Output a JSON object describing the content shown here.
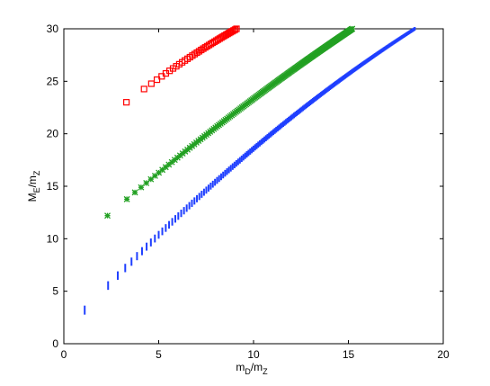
{
  "chart_data": {
    "type": "scatter",
    "title": "",
    "xlabel": {
      "main": "m",
      "sub": "D",
      "tail": "/m",
      "sub2": "Z"
    },
    "ylabel": {
      "main": "M",
      "sub": "E",
      "tail": "/m",
      "sub2": "Z"
    },
    "xlim": [
      0,
      20
    ],
    "ylim": [
      0,
      30
    ],
    "xticks": [
      "0",
      "5",
      "10",
      "15",
      "20"
    ],
    "yticks": [
      "0",
      "5",
      "10",
      "15",
      "20",
      "25",
      "30"
    ],
    "grid": false,
    "legend": "none",
    "series": [
      {
        "color": "#ff0000",
        "marker": "square",
        "x_range": [
          3.3,
          9.1
        ],
        "y_range": [
          23,
          30
        ],
        "points": 40,
        "curve": 0.15
      },
      {
        "color": "#22a022",
        "marker": "asterisk",
        "x_range": [
          2.3,
          15.2
        ],
        "y_range": [
          12.2,
          30
        ],
        "points": 160,
        "curve": 0.12
      },
      {
        "color": "#1f3fff",
        "marker": "vline",
        "x_range": [
          1.1,
          18.5
        ],
        "y_range": [
          3.2,
          30
        ],
        "points": 200,
        "curve": 0.25
      }
    ]
  }
}
